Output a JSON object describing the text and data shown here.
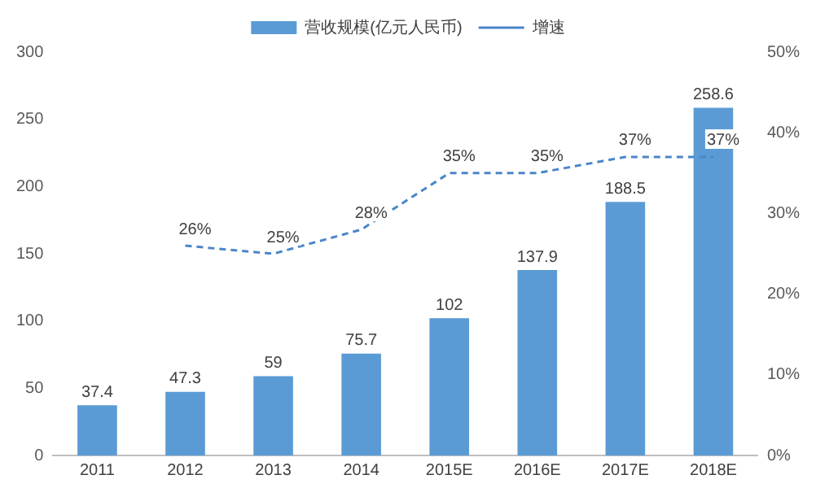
{
  "chart_data": {
    "type": "bar",
    "categories": [
      "2011",
      "2012",
      "2013",
      "2014",
      "2015E",
      "2016E",
      "2017E",
      "2018E"
    ],
    "series": [
      {
        "name": "营收规模(亿元人民币)",
        "color": "#5b9bd5",
        "values": [
          37.4,
          47.3,
          59,
          75.7,
          102,
          137.9,
          188.5,
          258.6
        ],
        "value_labels": [
          "37.4",
          "47.3",
          "59",
          "75.7",
          "102",
          "137.9",
          "188.5",
          "258.6"
        ]
      },
      {
        "name": "增速",
        "type": "line",
        "axis": "y2",
        "color": "#4a86c8",
        "line_style": "dashed",
        "marker": "none",
        "values": [
          null,
          26,
          25,
          28,
          35,
          35,
          37,
          37
        ],
        "value_labels": [
          null,
          "26%",
          "25%",
          "28%",
          "35%",
          "35%",
          "37%",
          "37%"
        ]
      }
    ],
    "ylim": [
      0,
      300
    ],
    "yticks": [
      0,
      50,
      100,
      150,
      200,
      250,
      300
    ],
    "y2lim": [
      0,
      50
    ],
    "y2ticks": [
      {
        "value": 0,
        "label": "0%"
      },
      {
        "value": 10,
        "label": "10%"
      },
      {
        "value": 20,
        "label": "20%"
      },
      {
        "value": 30,
        "label": "30%"
      },
      {
        "value": 40,
        "label": "40%"
      },
      {
        "value": 50,
        "label": "50%"
      }
    ],
    "grid": false,
    "legend": "top"
  }
}
